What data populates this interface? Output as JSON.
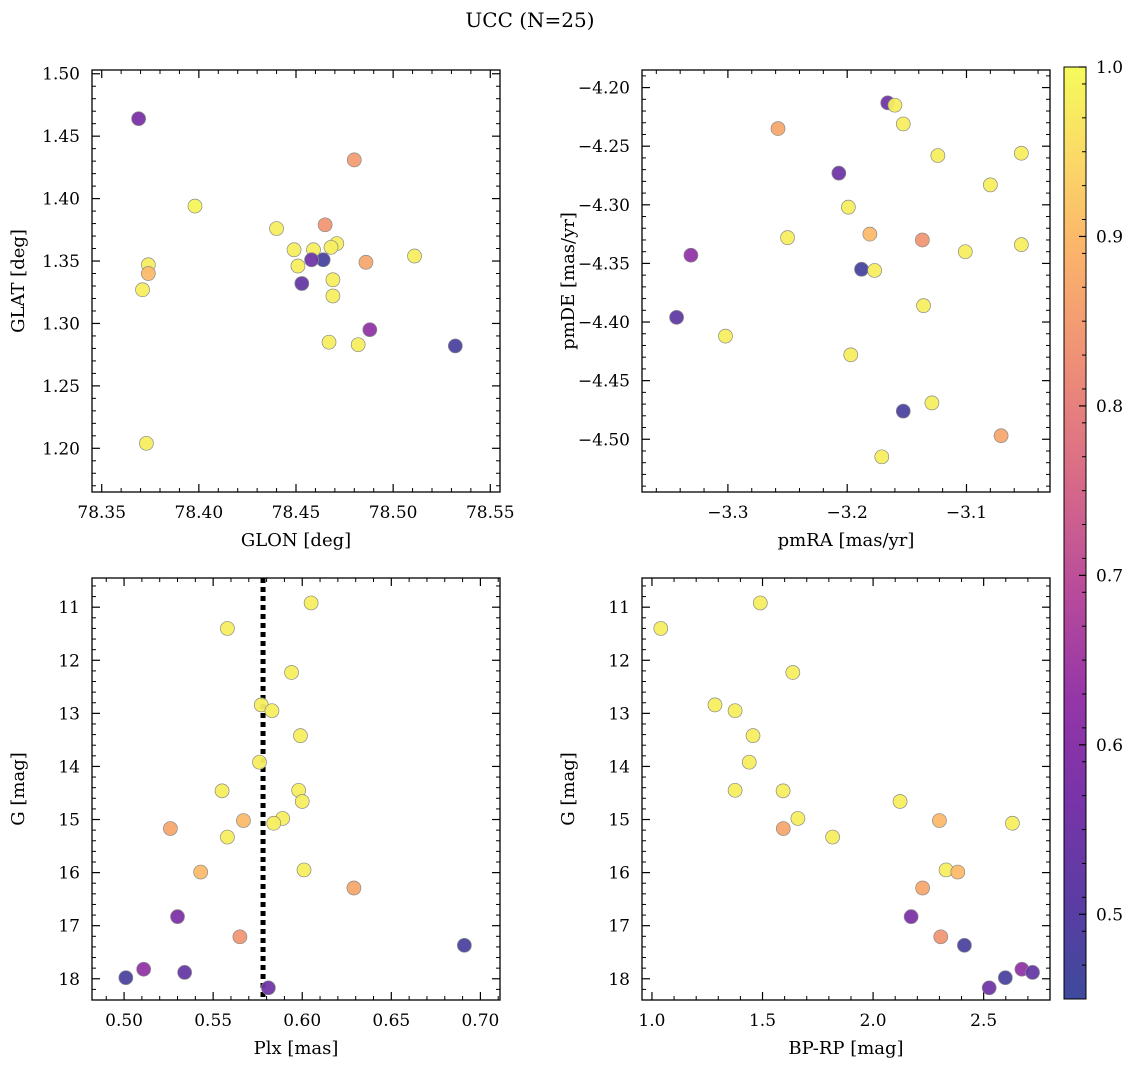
{
  "figure": {
    "title": "UCC (N=25)",
    "colormap": "plasma"
  },
  "colorbar": {
    "vmin": 0.45,
    "vmax": 1.0,
    "ticks": [
      0.5,
      0.6,
      0.7,
      0.8,
      0.9,
      1.0
    ],
    "tick_labels": [
      "0.5",
      "0.6",
      "0.7",
      "0.8",
      "0.9",
      "1.0"
    ]
  },
  "chart_data": [
    {
      "id": "glon_glat",
      "type": "scatter",
      "xlabel": "GLON [deg]",
      "ylabel": "GLAT [deg]",
      "xlim": [
        78.345,
        78.555
      ],
      "ylim": [
        1.165,
        1.503
      ],
      "y_inverted": false,
      "xticks": [
        78.35,
        78.4,
        78.45,
        78.5,
        78.55
      ],
      "xtick_labels": [
        "78.35",
        "78.40",
        "78.45",
        "78.50",
        "78.55"
      ],
      "yticks": [
        1.2,
        1.25,
        1.3,
        1.35,
        1.4,
        1.45,
        1.5
      ],
      "ytick_labels": [
        "1.20",
        "1.25",
        "1.30",
        "1.35",
        "1.40",
        "1.45",
        "1.50"
      ],
      "points": [
        {
          "x": 78.369,
          "y": 1.464,
          "c": 0.57
        },
        {
          "x": 78.48,
          "y": 1.431,
          "c": 0.85
        },
        {
          "x": 78.398,
          "y": 1.394,
          "c": 0.99
        },
        {
          "x": 78.465,
          "y": 1.379,
          "c": 0.84
        },
        {
          "x": 78.44,
          "y": 1.376,
          "c": 0.98
        },
        {
          "x": 78.471,
          "y": 1.364,
          "c": 0.98
        },
        {
          "x": 78.468,
          "y": 1.361,
          "c": 0.98
        },
        {
          "x": 78.449,
          "y": 1.359,
          "c": 0.98
        },
        {
          "x": 78.459,
          "y": 1.359,
          "c": 0.98
        },
        {
          "x": 78.511,
          "y": 1.354,
          "c": 0.98
        },
        {
          "x": 78.464,
          "y": 1.351,
          "c": 0.47
        },
        {
          "x": 78.458,
          "y": 1.351,
          "c": 0.55
        },
        {
          "x": 78.486,
          "y": 1.349,
          "c": 0.87
        },
        {
          "x": 78.374,
          "y": 1.347,
          "c": 0.98
        },
        {
          "x": 78.451,
          "y": 1.346,
          "c": 0.98
        },
        {
          "x": 78.374,
          "y": 1.34,
          "c": 0.9
        },
        {
          "x": 78.469,
          "y": 1.335,
          "c": 0.98
        },
        {
          "x": 78.453,
          "y": 1.332,
          "c": 0.53
        },
        {
          "x": 78.371,
          "y": 1.327,
          "c": 0.98
        },
        {
          "x": 78.469,
          "y": 1.322,
          "c": 0.98
        },
        {
          "x": 78.488,
          "y": 1.295,
          "c": 0.62
        },
        {
          "x": 78.467,
          "y": 1.285,
          "c": 0.98
        },
        {
          "x": 78.482,
          "y": 1.283,
          "c": 0.98
        },
        {
          "x": 78.532,
          "y": 1.282,
          "c": 0.48
        },
        {
          "x": 78.373,
          "y": 1.204,
          "c": 0.98
        }
      ]
    },
    {
      "id": "pm",
      "type": "scatter",
      "xlabel": "pmRA [mas/yr]",
      "ylabel": "pmDE [mas/yr]",
      "xlim": [
        -3.372,
        -3.03
      ],
      "ylim": [
        -4.545,
        -4.185
      ],
      "y_inverted": false,
      "xticks": [
        -3.3,
        -3.2,
        -3.1
      ],
      "xtick_labels": [
        "−3.3",
        "−3.2",
        "−3.1"
      ],
      "yticks": [
        -4.5,
        -4.45,
        -4.4,
        -4.35,
        -4.3,
        -4.25,
        -4.2
      ],
      "ytick_labels": [
        "−4.50",
        "−4.45",
        "−4.40",
        "−4.35",
        "−4.30",
        "−4.25",
        "−4.20"
      ],
      "points": [
        {
          "x": -3.166,
          "y": -4.213,
          "c": 0.55
        },
        {
          "x": -3.16,
          "y": -4.215,
          "c": 0.98
        },
        {
          "x": -3.153,
          "y": -4.231,
          "c": 0.98
        },
        {
          "x": -3.258,
          "y": -4.235,
          "c": 0.87
        },
        {
          "x": -3.054,
          "y": -4.256,
          "c": 0.98
        },
        {
          "x": -3.124,
          "y": -4.258,
          "c": 0.98
        },
        {
          "x": -3.207,
          "y": -4.273,
          "c": 0.55
        },
        {
          "x": -3.08,
          "y": -4.283,
          "c": 0.98
        },
        {
          "x": -3.199,
          "y": -4.302,
          "c": 0.98
        },
        {
          "x": -3.181,
          "y": -4.325,
          "c": 0.9
        },
        {
          "x": -3.25,
          "y": -4.328,
          "c": 0.98
        },
        {
          "x": -3.137,
          "y": -4.33,
          "c": 0.84
        },
        {
          "x": -3.054,
          "y": -4.334,
          "c": 0.98
        },
        {
          "x": -3.101,
          "y": -4.34,
          "c": 0.98
        },
        {
          "x": -3.331,
          "y": -4.343,
          "c": 0.62
        },
        {
          "x": -3.188,
          "y": -4.355,
          "c": 0.47
        },
        {
          "x": -3.177,
          "y": -4.356,
          "c": 0.98
        },
        {
          "x": -3.136,
          "y": -4.386,
          "c": 0.98
        },
        {
          "x": -3.343,
          "y": -4.396,
          "c": 0.52
        },
        {
          "x": -3.302,
          "y": -4.412,
          "c": 0.98
        },
        {
          "x": -3.197,
          "y": -4.428,
          "c": 0.98
        },
        {
          "x": -3.129,
          "y": -4.469,
          "c": 0.98
        },
        {
          "x": -3.153,
          "y": -4.476,
          "c": 0.48
        },
        {
          "x": -3.071,
          "y": -4.497,
          "c": 0.87
        },
        {
          "x": -3.171,
          "y": -4.515,
          "c": 0.98
        }
      ]
    },
    {
      "id": "plx_g",
      "type": "scatter",
      "xlabel": "Plx [mas]",
      "ylabel": "G [mag]",
      "xlim": [
        0.482,
        0.711
      ],
      "ylim": [
        18.4,
        10.45
      ],
      "y_inverted": true,
      "xticks": [
        0.5,
        0.55,
        0.6,
        0.65,
        0.7
      ],
      "xtick_labels": [
        "0.50",
        "0.55",
        "0.60",
        "0.65",
        "0.70"
      ],
      "yticks": [
        11,
        12,
        13,
        14,
        15,
        16,
        17,
        18
      ],
      "ytick_labels": [
        "11",
        "12",
        "13",
        "14",
        "15",
        "16",
        "17",
        "18"
      ],
      "vline": {
        "x": 0.578,
        "style": "dotted"
      },
      "points": [
        {
          "x": 0.605,
          "y": 10.92,
          "c": 0.98
        },
        {
          "x": 0.558,
          "y": 11.4,
          "c": 0.98
        },
        {
          "x": 0.594,
          "y": 12.23,
          "c": 0.98
        },
        {
          "x": 0.577,
          "y": 12.84,
          "c": 0.98
        },
        {
          "x": 0.583,
          "y": 12.95,
          "c": 0.98
        },
        {
          "x": 0.599,
          "y": 13.42,
          "c": 0.98
        },
        {
          "x": 0.576,
          "y": 13.92,
          "c": 0.98
        },
        {
          "x": 0.598,
          "y": 14.45,
          "c": 0.98
        },
        {
          "x": 0.555,
          "y": 14.46,
          "c": 0.98
        },
        {
          "x": 0.6,
          "y": 14.66,
          "c": 0.98
        },
        {
          "x": 0.589,
          "y": 14.98,
          "c": 0.98
        },
        {
          "x": 0.567,
          "y": 15.02,
          "c": 0.9
        },
        {
          "x": 0.584,
          "y": 15.07,
          "c": 0.98
        },
        {
          "x": 0.526,
          "y": 15.17,
          "c": 0.87
        },
        {
          "x": 0.558,
          "y": 15.33,
          "c": 0.98
        },
        {
          "x": 0.601,
          "y": 15.95,
          "c": 0.98
        },
        {
          "x": 0.543,
          "y": 15.99,
          "c": 0.9
        },
        {
          "x": 0.629,
          "y": 16.29,
          "c": 0.87
        },
        {
          "x": 0.53,
          "y": 16.83,
          "c": 0.58
        },
        {
          "x": 0.565,
          "y": 17.21,
          "c": 0.84
        },
        {
          "x": 0.691,
          "y": 17.37,
          "c": 0.48
        },
        {
          "x": 0.511,
          "y": 17.82,
          "c": 0.62
        },
        {
          "x": 0.534,
          "y": 17.88,
          "c": 0.53
        },
        {
          "x": 0.501,
          "y": 17.98,
          "c": 0.48
        },
        {
          "x": 0.581,
          "y": 18.17,
          "c": 0.55
        }
      ]
    },
    {
      "id": "cmd",
      "type": "scatter",
      "xlabel": "BP-RP [mag]",
      "ylabel": "G [mag]",
      "xlim": [
        0.955,
        2.8
      ],
      "ylim": [
        18.4,
        10.45
      ],
      "y_inverted": true,
      "xticks": [
        1.0,
        1.5,
        2.0,
        2.5
      ],
      "xtick_labels": [
        "1.0",
        "1.5",
        "2.0",
        "2.5"
      ],
      "yticks": [
        11,
        12,
        13,
        14,
        15,
        16,
        17,
        18
      ],
      "ytick_labels": [
        "11",
        "12",
        "13",
        "14",
        "15",
        "16",
        "17",
        "18"
      ],
      "points": [
        {
          "x": 1.49,
          "y": 10.92,
          "c": 0.98
        },
        {
          "x": 1.04,
          "y": 11.4,
          "c": 0.98
        },
        {
          "x": 1.637,
          "y": 12.23,
          "c": 0.98
        },
        {
          "x": 1.285,
          "y": 12.84,
          "c": 0.98
        },
        {
          "x": 1.376,
          "y": 12.95,
          "c": 0.98
        },
        {
          "x": 1.457,
          "y": 13.42,
          "c": 0.98
        },
        {
          "x": 1.44,
          "y": 13.92,
          "c": 0.98
        },
        {
          "x": 1.376,
          "y": 14.45,
          "c": 0.98
        },
        {
          "x": 1.593,
          "y": 14.46,
          "c": 0.98
        },
        {
          "x": 2.122,
          "y": 14.66,
          "c": 0.98
        },
        {
          "x": 1.66,
          "y": 14.98,
          "c": 0.98
        },
        {
          "x": 2.3,
          "y": 15.02,
          "c": 0.9
        },
        {
          "x": 2.63,
          "y": 15.07,
          "c": 0.98
        },
        {
          "x": 1.594,
          "y": 15.17,
          "c": 0.87
        },
        {
          "x": 1.817,
          "y": 15.33,
          "c": 0.98
        },
        {
          "x": 2.33,
          "y": 15.95,
          "c": 0.98
        },
        {
          "x": 2.383,
          "y": 15.99,
          "c": 0.9
        },
        {
          "x": 2.224,
          "y": 16.29,
          "c": 0.87
        },
        {
          "x": 2.172,
          "y": 16.83,
          "c": 0.58
        },
        {
          "x": 2.306,
          "y": 17.21,
          "c": 0.84
        },
        {
          "x": 2.413,
          "y": 17.37,
          "c": 0.48
        },
        {
          "x": 2.673,
          "y": 17.82,
          "c": 0.62
        },
        {
          "x": 2.721,
          "y": 17.88,
          "c": 0.53
        },
        {
          "x": 2.598,
          "y": 17.98,
          "c": 0.48
        },
        {
          "x": 2.525,
          "y": 18.17,
          "c": 0.55
        }
      ]
    }
  ]
}
